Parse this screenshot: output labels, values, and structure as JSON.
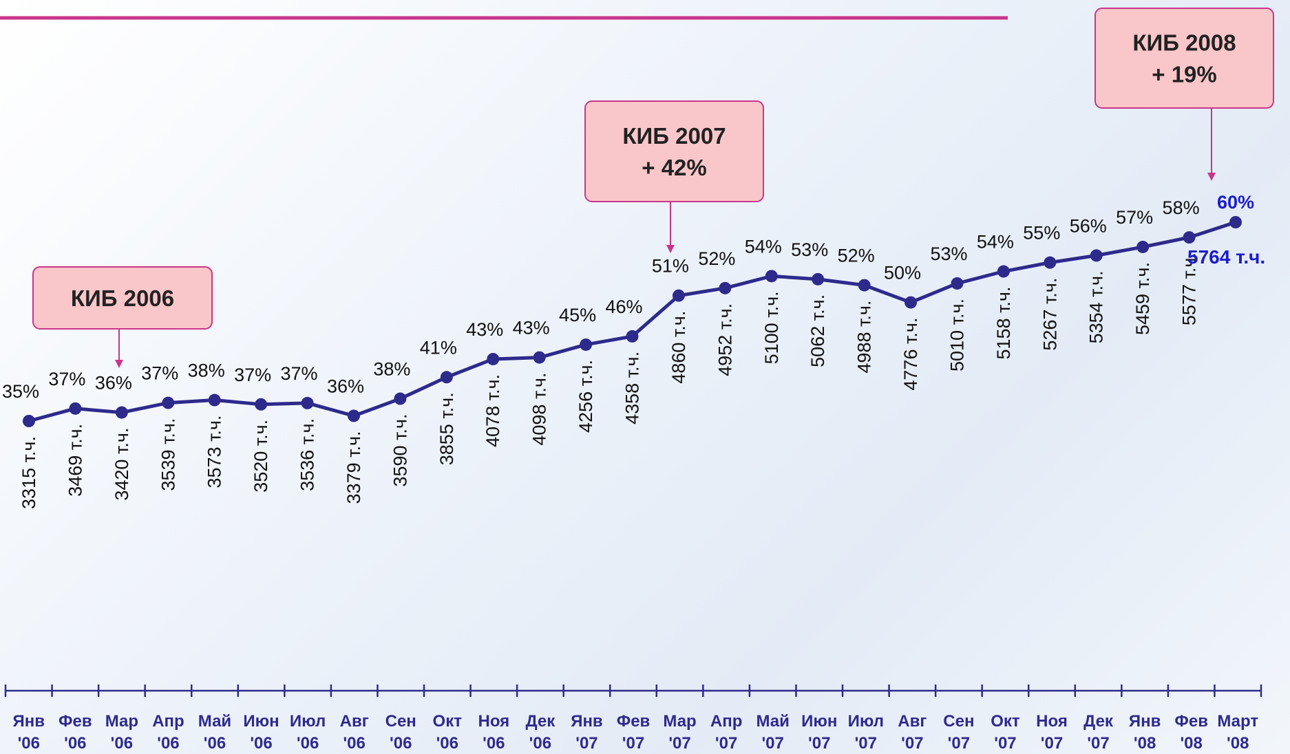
{
  "chart_data": {
    "type": "line",
    "categories": [
      "Янв '06",
      "Фев '06",
      "Мар '06",
      "Апр '06",
      "Май '06",
      "Июн '06",
      "Июл '06",
      "Авг '06",
      "Сен '06",
      "Окт '06",
      "Ноя '06",
      "Дек '06",
      "Янв '07",
      "Фев '07",
      "Мар '07",
      "Апр '07",
      "Май '07",
      "Июн '07",
      "Июл '07",
      "Авг '07",
      "Сен '07",
      "Окт '07",
      "Ноя '07",
      "Дек '07",
      "Янв '08",
      "Фев '08",
      "Март '08"
    ],
    "series": [
      {
        "color": "#2e2a8c",
        "values": [
          3315,
          3469,
          3420,
          3539,
          3573,
          3520,
          3536,
          3379,
          3590,
          3855,
          4078,
          4098,
          4256,
          4358,
          4860,
          4952,
          5100,
          5062,
          4988,
          4776,
          5010,
          5158,
          5267,
          5354,
          5459,
          5577,
          5764
        ],
        "value_labels": [
          "3315 т.ч.",
          "3469 т.ч.",
          "3420 т.ч.",
          "3539 т.ч.",
          "3573 т.ч.",
          "3520 т.ч.",
          "3536 т.ч.",
          "3379 т.ч.",
          "3590 т.ч.",
          "3855 т.ч.",
          "4078 т.ч.",
          "4098 т.ч.",
          "4256 т.ч.",
          "4358 т.ч.",
          "4860 т.ч.",
          "4952 т.ч.",
          "5100 т.ч.",
          "5062 т.ч.",
          "4988 т.ч.",
          "4776 т.ч.",
          "5010 т.ч.",
          "5158 т.ч.",
          "5267 т.ч.",
          "5354 т.ч.",
          "5459 т.ч.",
          "5577 т.ч.",
          "5764 т.ч."
        ],
        "shares": [
          35,
          37,
          36,
          37,
          38,
          37,
          37,
          36,
          38,
          41,
          43,
          43,
          45,
          46,
          51,
          52,
          54,
          53,
          52,
          50,
          53,
          54,
          55,
          56,
          57,
          58,
          60
        ],
        "share_labels": [
          "35%",
          "37%",
          "36%",
          "37%",
          "38%",
          "37%",
          "37%",
          "36%",
          "38%",
          "41%",
          "43%",
          "43%",
          "45%",
          "46%",
          "51%",
          "52%",
          "54%",
          "53%",
          "52%",
          "50%",
          "53%",
          "54%",
          "55%",
          "56%",
          "57%",
          "58%",
          "60%"
        ]
      }
    ],
    "annotations": [
      [
        "КИБ 2006"
      ],
      [
        "КИБ 2007",
        "+ 42%"
      ],
      [
        "КИБ 2008",
        "+ 19%"
      ]
    ]
  }
}
